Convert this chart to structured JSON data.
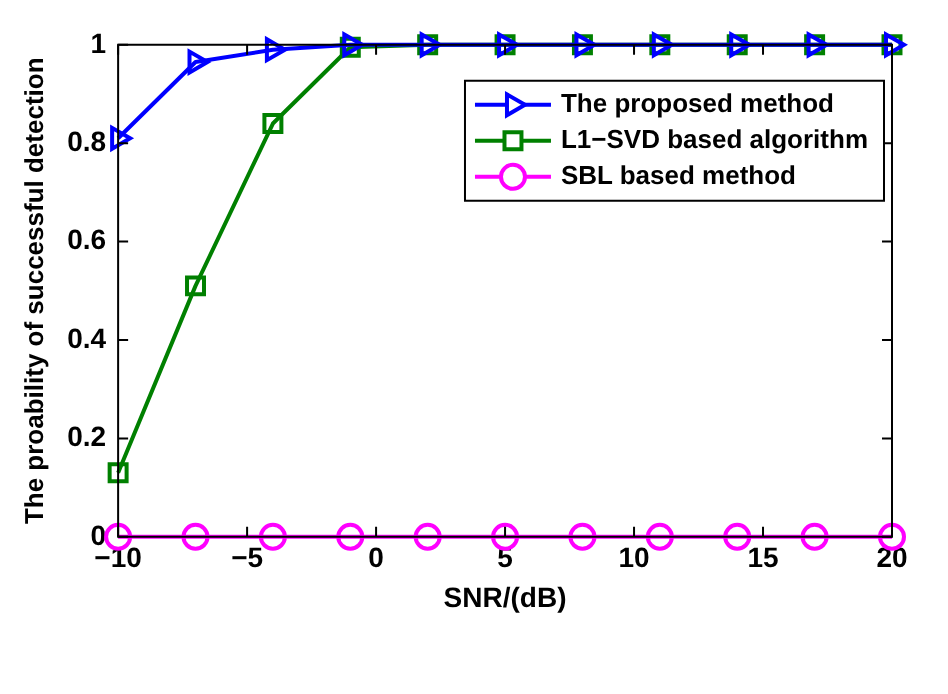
{
  "chart_data": {
    "type": "line",
    "xlabel": "SNR/(dB)",
    "ylabel": "The proability of successful detection",
    "x": [
      -10,
      -7,
      -4,
      -1,
      2,
      5,
      8,
      11,
      14,
      17,
      20
    ],
    "series": [
      {
        "name": "The proposed method",
        "color": "#0000ff",
        "marker": "triangle",
        "values": [
          0.81,
          0.965,
          0.99,
          1,
          1,
          1,
          1,
          1,
          1,
          1,
          1
        ]
      },
      {
        "name": "L1−SVD based algorithm",
        "color": "#008000",
        "marker": "square",
        "values": [
          0.13,
          0.51,
          0.84,
          0.995,
          1,
          1,
          1,
          1,
          1,
          1,
          1
        ]
      },
      {
        "name": "SBL based method",
        "color": "#ff00ff",
        "marker": "circle",
        "values": [
          0,
          0,
          0,
          0,
          0,
          0,
          0,
          0,
          0,
          0,
          0
        ]
      }
    ],
    "xlim": [
      -10,
      20
    ],
    "xticks": [
      {
        "value": -10,
        "label": "−10"
      },
      {
        "value": -5,
        "label": "−5"
      },
      0,
      5,
      10,
      15,
      20
    ],
    "ylim": [
      0,
      1
    ],
    "yticks": [
      0,
      0.2,
      0.4,
      0.6,
      0.8,
      1
    ],
    "grid": false,
    "legend": "top right",
    "line_style": "solid"
  }
}
